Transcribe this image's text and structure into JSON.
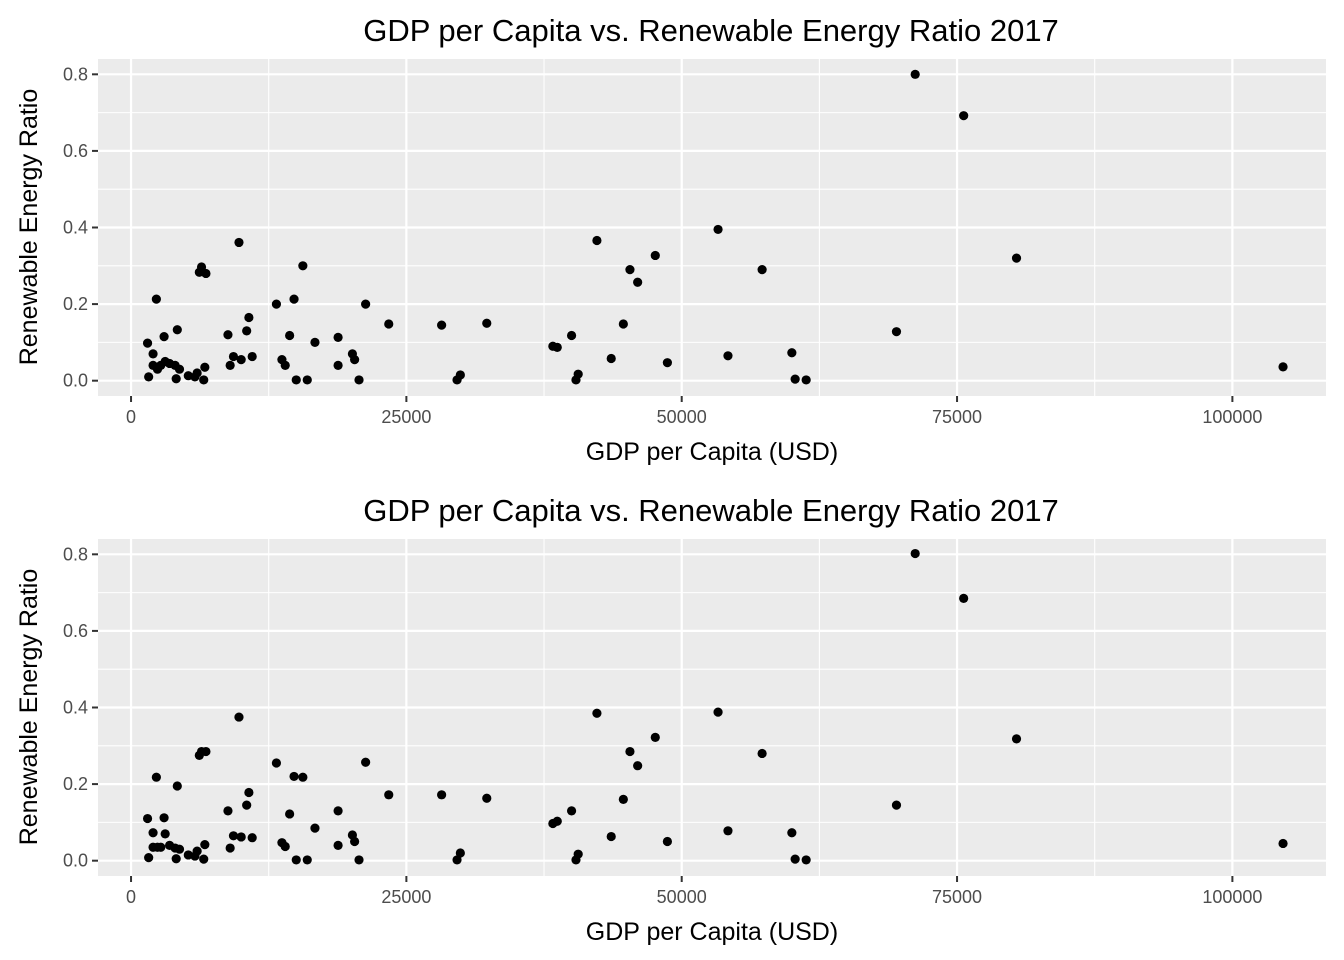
{
  "chart_data": [
    {
      "type": "scatter",
      "title": "GDP per Capita vs. Renewable Energy Ratio 2017",
      "xlabel": "GDP per Capita (USD)",
      "ylabel": "Renewable Energy Ratio",
      "xlim": [
        -3000,
        108500
      ],
      "ylim": [
        -0.04,
        0.84
      ],
      "x_ticks": [
        0,
        25000,
        50000,
        75000,
        100000
      ],
      "x_tick_labels": [
        "0",
        "25000",
        "50000",
        "75000",
        "100000"
      ],
      "y_ticks": [
        0.0,
        0.2,
        0.4,
        0.6,
        0.8
      ],
      "y_tick_labels": [
        "0.0",
        "0.2",
        "0.4",
        "0.6",
        "0.8"
      ],
      "grid": true,
      "points": [
        {
          "x": 1500,
          "y": 0.098
        },
        {
          "x": 1600,
          "y": 0.01
        },
        {
          "x": 2000,
          "y": 0.07
        },
        {
          "x": 2000,
          "y": 0.04
        },
        {
          "x": 2300,
          "y": 0.213
        },
        {
          "x": 2400,
          "y": 0.03
        },
        {
          "x": 2700,
          "y": 0.04
        },
        {
          "x": 3000,
          "y": 0.115
        },
        {
          "x": 3100,
          "y": 0.05
        },
        {
          "x": 3500,
          "y": 0.045
        },
        {
          "x": 4000,
          "y": 0.04
        },
        {
          "x": 4100,
          "y": 0.005
        },
        {
          "x": 4200,
          "y": 0.133
        },
        {
          "x": 4400,
          "y": 0.03
        },
        {
          "x": 5200,
          "y": 0.013
        },
        {
          "x": 5800,
          "y": 0.01
        },
        {
          "x": 6000,
          "y": 0.02
        },
        {
          "x": 6200,
          "y": 0.283
        },
        {
          "x": 6400,
          "y": 0.297
        },
        {
          "x": 6600,
          "y": 0.002
        },
        {
          "x": 6700,
          "y": 0.035
        },
        {
          "x": 6800,
          "y": 0.28
        },
        {
          "x": 8800,
          "y": 0.12
        },
        {
          "x": 9000,
          "y": 0.04
        },
        {
          "x": 9300,
          "y": 0.063
        },
        {
          "x": 9800,
          "y": 0.361
        },
        {
          "x": 10000,
          "y": 0.055
        },
        {
          "x": 10500,
          "y": 0.13
        },
        {
          "x": 10700,
          "y": 0.165
        },
        {
          "x": 11000,
          "y": 0.063
        },
        {
          "x": 13200,
          "y": 0.2
        },
        {
          "x": 13700,
          "y": 0.055
        },
        {
          "x": 14000,
          "y": 0.04
        },
        {
          "x": 14400,
          "y": 0.118
        },
        {
          "x": 14800,
          "y": 0.213
        },
        {
          "x": 15000,
          "y": 0.002
        },
        {
          "x": 15600,
          "y": 0.3
        },
        {
          "x": 16000,
          "y": 0.002
        },
        {
          "x": 16700,
          "y": 0.1
        },
        {
          "x": 18800,
          "y": 0.113
        },
        {
          "x": 18800,
          "y": 0.04
        },
        {
          "x": 20100,
          "y": 0.07
        },
        {
          "x": 20300,
          "y": 0.055
        },
        {
          "x": 20700,
          "y": 0.002
        },
        {
          "x": 21300,
          "y": 0.2
        },
        {
          "x": 23400,
          "y": 0.148
        },
        {
          "x": 28200,
          "y": 0.145
        },
        {
          "x": 29600,
          "y": 0.002
        },
        {
          "x": 29900,
          "y": 0.015
        },
        {
          "x": 32300,
          "y": 0.15
        },
        {
          "x": 38300,
          "y": 0.09
        },
        {
          "x": 38700,
          "y": 0.087
        },
        {
          "x": 40000,
          "y": 0.118
        },
        {
          "x": 40400,
          "y": 0.002
        },
        {
          "x": 40600,
          "y": 0.017
        },
        {
          "x": 42300,
          "y": 0.366
        },
        {
          "x": 43600,
          "y": 0.058
        },
        {
          "x": 44700,
          "y": 0.148
        },
        {
          "x": 45300,
          "y": 0.29
        },
        {
          "x": 46000,
          "y": 0.257
        },
        {
          "x": 47600,
          "y": 0.327
        },
        {
          "x": 48700,
          "y": 0.047
        },
        {
          "x": 53300,
          "y": 0.395
        },
        {
          "x": 54200,
          "y": 0.065
        },
        {
          "x": 57300,
          "y": 0.29
        },
        {
          "x": 60000,
          "y": 0.073
        },
        {
          "x": 60300,
          "y": 0.004
        },
        {
          "x": 61300,
          "y": 0.002
        },
        {
          "x": 69500,
          "y": 0.128
        },
        {
          "x": 71200,
          "y": 0.8
        },
        {
          "x": 75600,
          "y": 0.692
        },
        {
          "x": 80400,
          "y": 0.32
        },
        {
          "x": 104600,
          "y": 0.036
        }
      ]
    },
    {
      "type": "scatter",
      "title": "GDP per Capita vs. Renewable Energy Ratio 2017",
      "xlabel": "GDP per Capita (USD)",
      "ylabel": "Renewable Energy Ratio",
      "xlim": [
        -3000,
        108500
      ],
      "ylim": [
        -0.04,
        0.84
      ],
      "x_ticks": [
        0,
        25000,
        50000,
        75000,
        100000
      ],
      "x_tick_labels": [
        "0",
        "25000",
        "50000",
        "75000",
        "100000"
      ],
      "y_ticks": [
        0.0,
        0.2,
        0.4,
        0.6,
        0.8
      ],
      "y_tick_labels": [
        "0.0",
        "0.2",
        "0.4",
        "0.6",
        "0.8"
      ],
      "grid": true,
      "points": [
        {
          "x": 1500,
          "y": 0.11
        },
        {
          "x": 1600,
          "y": 0.008
        },
        {
          "x": 2000,
          "y": 0.073
        },
        {
          "x": 2000,
          "y": 0.035
        },
        {
          "x": 2300,
          "y": 0.218
        },
        {
          "x": 2400,
          "y": 0.035
        },
        {
          "x": 2700,
          "y": 0.035
        },
        {
          "x": 3000,
          "y": 0.112
        },
        {
          "x": 3100,
          "y": 0.07
        },
        {
          "x": 3500,
          "y": 0.04
        },
        {
          "x": 4000,
          "y": 0.033
        },
        {
          "x": 4100,
          "y": 0.005
        },
        {
          "x": 4200,
          "y": 0.195
        },
        {
          "x": 4400,
          "y": 0.03
        },
        {
          "x": 5200,
          "y": 0.015
        },
        {
          "x": 5800,
          "y": 0.012
        },
        {
          "x": 6000,
          "y": 0.025
        },
        {
          "x": 6200,
          "y": 0.275
        },
        {
          "x": 6400,
          "y": 0.285
        },
        {
          "x": 6600,
          "y": 0.004
        },
        {
          "x": 6700,
          "y": 0.042
        },
        {
          "x": 6800,
          "y": 0.285
        },
        {
          "x": 8800,
          "y": 0.13
        },
        {
          "x": 9000,
          "y": 0.033
        },
        {
          "x": 9300,
          "y": 0.065
        },
        {
          "x": 9800,
          "y": 0.375
        },
        {
          "x": 10000,
          "y": 0.062
        },
        {
          "x": 10500,
          "y": 0.145
        },
        {
          "x": 10700,
          "y": 0.178
        },
        {
          "x": 11000,
          "y": 0.06
        },
        {
          "x": 13200,
          "y": 0.255
        },
        {
          "x": 13700,
          "y": 0.047
        },
        {
          "x": 14000,
          "y": 0.037
        },
        {
          "x": 14400,
          "y": 0.122
        },
        {
          "x": 14800,
          "y": 0.22
        },
        {
          "x": 15000,
          "y": 0.002
        },
        {
          "x": 15600,
          "y": 0.218
        },
        {
          "x": 16000,
          "y": 0.002
        },
        {
          "x": 16700,
          "y": 0.085
        },
        {
          "x": 18800,
          "y": 0.13
        },
        {
          "x": 18800,
          "y": 0.04
        },
        {
          "x": 20100,
          "y": 0.067
        },
        {
          "x": 20300,
          "y": 0.05
        },
        {
          "x": 20700,
          "y": 0.002
        },
        {
          "x": 21300,
          "y": 0.257
        },
        {
          "x": 23400,
          "y": 0.172
        },
        {
          "x": 28200,
          "y": 0.172
        },
        {
          "x": 29600,
          "y": 0.002
        },
        {
          "x": 29900,
          "y": 0.02
        },
        {
          "x": 32300,
          "y": 0.163
        },
        {
          "x": 38300,
          "y": 0.097
        },
        {
          "x": 38700,
          "y": 0.103
        },
        {
          "x": 40000,
          "y": 0.13
        },
        {
          "x": 40400,
          "y": 0.002
        },
        {
          "x": 40600,
          "y": 0.017
        },
        {
          "x": 42300,
          "y": 0.385
        },
        {
          "x": 43600,
          "y": 0.063
        },
        {
          "x": 44700,
          "y": 0.16
        },
        {
          "x": 45300,
          "y": 0.285
        },
        {
          "x": 46000,
          "y": 0.248
        },
        {
          "x": 47600,
          "y": 0.322
        },
        {
          "x": 48700,
          "y": 0.05
        },
        {
          "x": 53300,
          "y": 0.388
        },
        {
          "x": 54200,
          "y": 0.078
        },
        {
          "x": 57300,
          "y": 0.28
        },
        {
          "x": 60000,
          "y": 0.073
        },
        {
          "x": 60300,
          "y": 0.004
        },
        {
          "x": 61300,
          "y": 0.002
        },
        {
          "x": 69500,
          "y": 0.145
        },
        {
          "x": 71200,
          "y": 0.802
        },
        {
          "x": 75600,
          "y": 0.685
        },
        {
          "x": 80400,
          "y": 0.318
        },
        {
          "x": 104600,
          "y": 0.045
        }
      ]
    }
  ],
  "style": {
    "panel_background": "#ebebeb",
    "grid_color": "#ffffff",
    "point_color": "#000000",
    "tick_color": "#333333",
    "tick_label_color": "#4d4d4d",
    "title_color": "#000000"
  }
}
